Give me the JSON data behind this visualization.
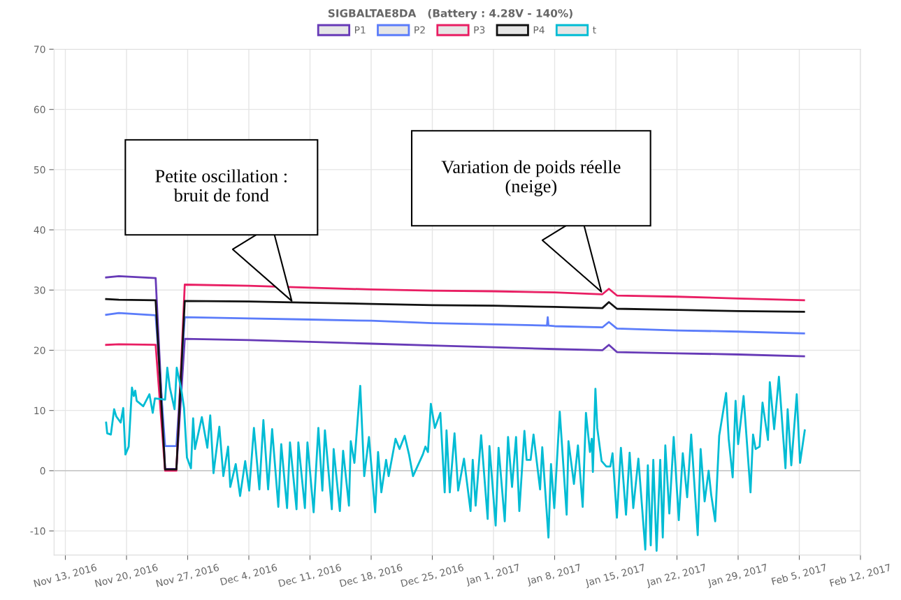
{
  "chart_data": {
    "type": "line",
    "title": "SIGBALTAE8DA   (Battery : 4.28V - 140%)",
    "xlim": [
      "2016-11-11T17:00",
      "2017-02-12T00:00"
    ],
    "ylim": [
      -14,
      70
    ],
    "yticks": [
      -10,
      0,
      10,
      20,
      30,
      40,
      50,
      60,
      70
    ],
    "xticks": [
      {
        "value": "2016-11-13",
        "label": "Nov 13, 2016"
      },
      {
        "value": "2016-11-20",
        "label": "Nov 20, 2016"
      },
      {
        "value": "2016-11-27",
        "label": "Nov 27, 2016"
      },
      {
        "value": "2016-12-04",
        "label": "Dec 4, 2016"
      },
      {
        "value": "2016-12-11",
        "label": "Dec 11, 2016"
      },
      {
        "value": "2016-12-18",
        "label": "Dec 18, 2016"
      },
      {
        "value": "2016-12-25",
        "label": "Dec 25, 2016"
      },
      {
        "value": "2017-01-01",
        "label": "Jan 1, 2017"
      },
      {
        "value": "2017-01-08",
        "label": "Jan 8, 2017"
      },
      {
        "value": "2017-01-15",
        "label": "Jan 15, 2017"
      },
      {
        "value": "2017-01-22",
        "label": "Jan 22, 2017"
      },
      {
        "value": "2017-01-29",
        "label": "Jan 29, 2017"
      },
      {
        "value": "2017-02-05",
        "label": "Feb 5, 2017"
      },
      {
        "value": "2017-02-12",
        "label": "Feb 12, 2017"
      }
    ],
    "grid": true,
    "legend": "top",
    "series": [
      {
        "name": "P1",
        "color": "#673ab7",
        "x": [
          "2016-11-17T16:00",
          "2016-11-19T03:00",
          "2016-11-23T08:00",
          "2016-11-24T10:00",
          "2016-11-25T17:00",
          "2016-11-26T16:00",
          "2016-12-04",
          "2016-12-11",
          "2016-12-18",
          "2016-12-25",
          "2017-01-01",
          "2017-01-08",
          "2017-01-13T11:00",
          "2017-01-14T05:00",
          "2017-01-15T03:00",
          "2017-01-22",
          "2017-01-29",
          "2017-02-05T13:00"
        ],
        "values": [
          32.1,
          32.3,
          32.0,
          0.3,
          0.3,
          21.9,
          21.7,
          21.4,
          21.1,
          20.8,
          20.5,
          20.2,
          20.0,
          20.9,
          19.7,
          19.5,
          19.3,
          19.0
        ]
      },
      {
        "name": "P2",
        "color": "#5b7cfa",
        "x": [
          "2016-11-17T16:00",
          "2016-11-19T03:00",
          "2016-11-23T08:00",
          "2016-11-24T10:00",
          "2016-11-25T17:00",
          "2016-11-26T16:00",
          "2016-12-04",
          "2016-12-11",
          "2016-12-18",
          "2016-12-25",
          "2017-01-01",
          "2017-01-07T03:00",
          "2017-01-07T05:00",
          "2017-01-07T07:00",
          "2017-01-08",
          "2017-01-13T11:00",
          "2017-01-14T05:00",
          "2017-01-15T03:00",
          "2017-01-22",
          "2017-01-29",
          "2017-02-05T13:00"
        ],
        "values": [
          25.9,
          26.2,
          25.8,
          4.1,
          4.1,
          25.5,
          25.3,
          25.1,
          24.9,
          24.5,
          24.3,
          24.1,
          25.5,
          24.1,
          24.0,
          23.8,
          24.7,
          23.6,
          23.3,
          23.1,
          22.8
        ]
      },
      {
        "name": "P3",
        "color": "#e91e63",
        "x": [
          "2016-11-17T16:00",
          "2016-11-19T03:00",
          "2016-11-23T08:00",
          "2016-11-24T10:00",
          "2016-11-25T17:00",
          "2016-11-26T16:00",
          "2016-12-04",
          "2016-12-11",
          "2016-12-18",
          "2016-12-25",
          "2017-01-01",
          "2017-01-08",
          "2017-01-13T11:00",
          "2017-01-14T05:00",
          "2017-01-15T03:00",
          "2017-01-22",
          "2017-01-29",
          "2017-02-05T13:00"
        ],
        "values": [
          20.9,
          21.0,
          20.9,
          0,
          0,
          30.9,
          30.7,
          30.4,
          30.1,
          29.9,
          29.8,
          29.6,
          29.3,
          30.2,
          29.1,
          28.9,
          28.6,
          28.3
        ]
      },
      {
        "name": "P4",
        "color": "#111111",
        "x": [
          "2016-11-17T16:00",
          "2016-11-19T03:00",
          "2016-11-23T08:00",
          "2016-11-24T10:00",
          "2016-11-25T17:00",
          "2016-11-26T16:00",
          "2016-12-04",
          "2016-12-11",
          "2016-12-18",
          "2016-12-25",
          "2017-01-01",
          "2017-01-08",
          "2017-01-13T11:00",
          "2017-01-14T05:00",
          "2017-01-15T03:00",
          "2017-01-22",
          "2017-01-29",
          "2017-02-05T13:00"
        ],
        "values": [
          28.5,
          28.4,
          28.3,
          0.2,
          0.2,
          28.2,
          28.1,
          27.9,
          27.7,
          27.5,
          27.4,
          27.2,
          27.0,
          28.0,
          26.9,
          26.7,
          26.5,
          26.4
        ]
      },
      {
        "name": "t",
        "color": "#00bcd4",
        "x": [
          "2016-11-17T16:00",
          "2016-11-17T19:00",
          "2016-11-18T05:00",
          "2016-11-18T14:00",
          "2016-11-18T20:00",
          "2016-11-19T08:00",
          "2016-11-19T15:00",
          "2016-11-19T21:00",
          "2016-11-20T06:00",
          "2016-11-20T15:00",
          "2016-11-20T20:00",
          "2016-11-21T00:00",
          "2016-11-21T04:00",
          "2016-11-21T22:00",
          "2016-11-22T15:00",
          "2016-11-23T00:00",
          "2016-11-23T06:00",
          "2016-11-24T10:00",
          "2016-11-24T16:00",
          "2016-11-24T23:00",
          "2016-11-25T12:00",
          "2016-11-25T18:00",
          "2016-11-26T07:00",
          "2016-11-26T14:00",
          "2016-11-26T22:00",
          "2016-11-27T09:00",
          "2016-11-27T15:00",
          "2016-11-27T20:00",
          "2016-11-28T15:00",
          "2016-11-29T06:00",
          "2016-11-29T14:00",
          "2016-11-29T23:00",
          "2016-11-30T15:00",
          "2016-12-01T02:00",
          "2016-12-01T15:00",
          "2016-12-01T21:00",
          "2016-12-02T12:00",
          "2016-12-03T00:00",
          "2016-12-03T14:00",
          "2016-12-04T01:00",
          "2016-12-04T14:00",
          "2016-12-05T05:00",
          "2016-12-05T16:00",
          "2016-12-06T05:00",
          "2016-12-06T16:00",
          "2016-12-07T09:00",
          "2016-12-07T17:00",
          "2016-12-08T09:00",
          "2016-12-08T17:00",
          "2016-12-09T11:00",
          "2016-12-09T16:00",
          "2016-12-10T10:00",
          "2016-12-10T17:00",
          "2016-12-11T10:00",
          "2016-12-11T23:00",
          "2016-12-12T10:00",
          "2016-12-12T17:00",
          "2016-12-13T12:00",
          "2016-12-13T17:00",
          "2016-12-14T10:00",
          "2016-12-14T19:00",
          "2016-12-15T11:00",
          "2016-12-15T16:00",
          "2016-12-16T02:00",
          "2016-12-16T18:00",
          "2016-12-17T05:00",
          "2016-12-17T18:00",
          "2016-12-18T11:00",
          "2016-12-18T19:00",
          "2016-12-19T04:00",
          "2016-12-19T17:00",
          "2016-12-20T00:00",
          "2016-12-20T19:00",
          "2016-12-21T06:00",
          "2016-12-21T20:00",
          "2016-12-22T08:00",
          "2016-12-22T19:00",
          "2016-12-23T22:00",
          "2016-12-24T05:00",
          "2016-12-24T12:00",
          "2016-12-24T20:00",
          "2016-12-25T07:00",
          "2016-12-25T22:00",
          "2016-12-26T10:00",
          "2016-12-26T15:00",
          "2016-12-27T00:00",
          "2016-12-27T13:00",
          "2016-12-27T23:00",
          "2016-12-28T15:00",
          "2016-12-29T09:00",
          "2016-12-29T15:00",
          "2016-12-29T23:00",
          "2016-12-30T14:00",
          "2016-12-31T08:00",
          "2016-12-31T13:00",
          "2017-01-01T06:00",
          "2017-01-01T14:00",
          "2017-01-02T07:00",
          "2017-01-02T16:00",
          "2017-01-03T03:00",
          "2017-01-03T14:00",
          "2017-01-03T23:00",
          "2017-01-04T13:00",
          "2017-01-04T19:00",
          "2017-01-05T06:00",
          "2017-01-05T14:00",
          "2017-01-06T08:00",
          "2017-01-06T14:00",
          "2017-01-07T07:00",
          "2017-01-07T14:00",
          "2017-01-07T23:00",
          "2017-01-08T14:00",
          "2017-01-09T09:00",
          "2017-01-09T14:00",
          "2017-01-10T05:00",
          "2017-01-10T16:00",
          "2017-01-11T05:00",
          "2017-01-11T14:00",
          "2017-01-12T01:00",
          "2017-01-12T06:00",
          "2017-01-12T09:00",
          "2017-01-12T16:00",
          "2017-01-12T21:00",
          "2017-01-13T09:00",
          "2017-01-13T22:00",
          "2017-01-14T09:00",
          "2017-01-14T15:00",
          "2017-01-15T03:00",
          "2017-01-15T14:00",
          "2017-01-16T04:00",
          "2017-01-16T14:00",
          "2017-01-17T00:00",
          "2017-01-17T14:00",
          "2017-01-18T09:00",
          "2017-01-18T16:00",
          "2017-01-19T00:00",
          "2017-01-19T07:00",
          "2017-01-19T16:00",
          "2017-01-20T02:00",
          "2017-01-20T09:00",
          "2017-01-20T16:00",
          "2017-01-21T03:00",
          "2017-01-21T15:00",
          "2017-01-22T05:00",
          "2017-01-22T16:00",
          "2017-01-23T04:00",
          "2017-01-23T15:00",
          "2017-01-24T09:00",
          "2017-01-24T17:00",
          "2017-01-25T04:00",
          "2017-01-25T15:00",
          "2017-01-25T22:00",
          "2017-01-26T09:00",
          "2017-01-26T20:00",
          "2017-01-27T15:00",
          "2017-01-27T22:00",
          "2017-01-28T09:00",
          "2017-01-28T17:00",
          "2017-01-29T00:00",
          "2017-01-29T15:00",
          "2017-01-30T10:00",
          "2017-01-30T17:00",
          "2017-01-31T00:00",
          "2017-01-31T11:00",
          "2017-01-31T19:00",
          "2017-02-01T10:00",
          "2017-02-01T15:00",
          "2017-02-02T03:00",
          "2017-02-02T16:00",
          "2017-02-03T10:00",
          "2017-02-03T16:00",
          "2017-02-04T02:00",
          "2017-02-04T17:00",
          "2017-02-05T02:00",
          "2017-02-05T15:00"
        ],
        "values": [
          8.0,
          6.2,
          6.0,
          10.2,
          9.0,
          8.0,
          10.4,
          2.7,
          4.0,
          13.8,
          12.4,
          13.3,
          11.6,
          10.7,
          12.7,
          9.6,
          12.0,
          11.8,
          17.1,
          13.8,
          10.2,
          17.1,
          13.3,
          10.4,
          2.2,
          0.4,
          8.7,
          3.6,
          8.9,
          3.8,
          9.2,
          -0.4,
          7.3,
          -0.9,
          4.0,
          -2.7,
          1.1,
          -4.2,
          1.6,
          -3.3,
          7.1,
          -3.1,
          8.4,
          -3.1,
          6.9,
          -6.0,
          4.4,
          -6.2,
          4.7,
          -6.4,
          4.7,
          -6.2,
          4.7,
          -6.9,
          7.1,
          -3.3,
          6.7,
          -6.4,
          3.6,
          -6.7,
          3.3,
          -5.8,
          4.9,
          1.3,
          14.1,
          -0.9,
          5.6,
          -6.9,
          3.1,
          -3.6,
          1.8,
          -0.9,
          5.3,
          3.6,
          5.8,
          2.7,
          -0.9,
          2.7,
          4.0,
          3.1,
          11.1,
          7.1,
          9.6,
          -3.6,
          6.7,
          -3.6,
          6.2,
          -3.3,
          2.0,
          -6.7,
          1.8,
          -5.8,
          5.9,
          -8.0,
          4.1,
          -9.1,
          3.8,
          -8.4,
          5.6,
          -2.7,
          5.6,
          -6.7,
          6.6,
          1.8,
          1.8,
          6.0,
          -3.1,
          3.9,
          -11.1,
          1.1,
          -6.2,
          9.8,
          -7.3,
          4.9,
          -2.2,
          4.2,
          -6.0,
          9.6,
          3.1,
          5.3,
          -0.2,
          13.6,
          7.1,
          1.6,
          0.7,
          0.7,
          2.9,
          -7.8,
          3.8,
          -7.3,
          3.0,
          -6.2,
          2.0,
          -13.1,
          0.9,
          -12.4,
          1.8,
          -13.3,
          1.8,
          -11.1,
          4.2,
          -7.1,
          5.6,
          -8.2,
          2.9,
          -4.4,
          6.0,
          -10.7,
          3.6,
          -5.1,
          0.0,
          -4.0,
          -8.4,
          5.8,
          12.9,
          5.3,
          -1.1,
          11.6,
          4.4,
          12.4,
          -3.6,
          6.0,
          3.6,
          4.0,
          11.3,
          5.1,
          14.7,
          6.9,
          15.6,
          0.4,
          10.2,
          0.9,
          12.7,
          1.3,
          6.7
        ]
      }
    ],
    "annotations": [
      "Petite oscillation :\nbruit de fond",
      "Variation de poids réelle\n(neige)"
    ]
  }
}
